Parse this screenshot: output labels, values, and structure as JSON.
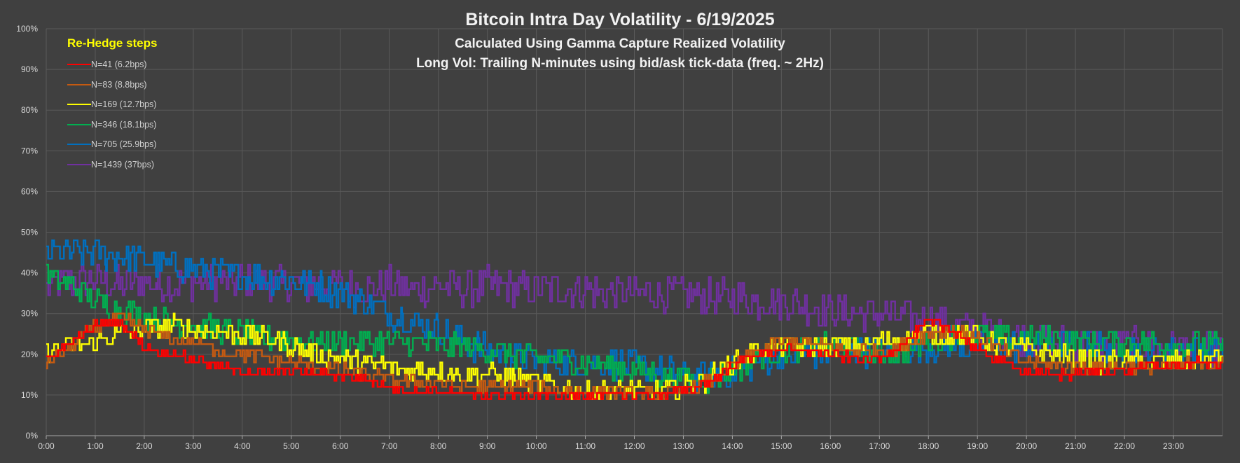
{
  "chart_data": {
    "type": "line",
    "title": "Bitcoin Intra Day Volatility - 6/19/2025",
    "subtitle_1": "Calculated Using Gamma Capture Realized Volatility",
    "subtitle_2": "Long Vol: Trailing N-minutes using bid/ask tick-data (freq. ~ 2Hz)",
    "legend_title": "Re-Hedge steps",
    "legend_position": "top-left",
    "grid": true,
    "ylim": [
      0,
      100
    ],
    "y_ticks": [
      "0%",
      "10%",
      "20%",
      "30%",
      "40%",
      "50%",
      "60%",
      "70%",
      "80%",
      "90%",
      "100%"
    ],
    "x_ticks": [
      "0:00",
      "1:00",
      "2:00",
      "3:00",
      "4:00",
      "5:00",
      "6:00",
      "7:00",
      "8:00",
      "9:00",
      "10:00",
      "11:00",
      "12:00",
      "13:00",
      "14:00",
      "15:00",
      "16:00",
      "17:00",
      "18:00",
      "19:00",
      "20:00",
      "21:00",
      "22:00",
      "23:00"
    ],
    "x_hours": [
      0,
      0.5,
      1,
      1.5,
      2,
      2.5,
      3,
      3.5,
      4,
      4.5,
      5,
      5.5,
      6,
      6.5,
      7,
      7.5,
      8,
      8.5,
      9,
      9.5,
      10,
      10.5,
      11,
      11.5,
      12,
      12.5,
      13,
      13.5,
      14,
      14.5,
      15,
      15.5,
      16,
      16.5,
      17,
      17.5,
      18,
      18.5,
      19,
      19.5,
      20,
      20.5,
      21,
      21.5,
      22,
      22.5,
      23,
      23.5,
      24
    ],
    "series": [
      {
        "name": "N=1439 (37bps)",
        "color": "#7030a0",
        "values": [
          36,
          38,
          38,
          37,
          38,
          37,
          38,
          38,
          38,
          38,
          37,
          37,
          37,
          36,
          37,
          36,
          37,
          36,
          37,
          36,
          36,
          36,
          36,
          35,
          35,
          35,
          35,
          34,
          34,
          33,
          33,
          32,
          31,
          30,
          30,
          29,
          28,
          27,
          26,
          25,
          24,
          23,
          23,
          22,
          22,
          22,
          22,
          21,
          21
        ]
      },
      {
        "name": "N=705 (25.9bps)",
        "color": "#0070c0",
        "values": [
          45,
          45,
          45,
          44,
          43,
          42,
          41,
          40,
          39,
          39,
          38,
          37,
          35,
          33,
          30,
          28,
          26,
          23,
          21,
          19,
          18,
          18,
          18,
          18,
          17,
          16,
          15,
          14,
          16,
          18,
          20,
          20,
          21,
          21,
          21,
          21,
          22,
          22,
          22,
          22,
          22,
          22,
          22,
          22,
          22,
          21,
          21,
          21,
          22
        ]
      },
      {
        "name": "N=346 (18.1bps)",
        "color": "#00b050",
        "values": [
          39,
          37,
          33,
          31,
          29,
          28,
          27,
          26,
          25,
          24,
          24,
          23,
          23,
          23,
          23,
          23,
          22,
          22,
          21,
          20,
          19,
          19,
          18,
          17,
          16,
          15,
          14,
          14,
          16,
          19,
          21,
          21,
          22,
          21,
          20,
          21,
          23,
          25,
          25,
          24,
          24,
          24,
          23,
          23,
          23,
          23,
          22,
          22,
          22
        ]
      },
      {
        "name": "N=169 (12.7bps)",
        "color": "#ffff00",
        "values": [
          21,
          22,
          23,
          25,
          26,
          27,
          26,
          26,
          25,
          24,
          22,
          20,
          19,
          18,
          17,
          16,
          16,
          15,
          15,
          14,
          13,
          12,
          11,
          11,
          11,
          11,
          12,
          14,
          18,
          21,
          22,
          22,
          22,
          22,
          23,
          24,
          25,
          25,
          24,
          22,
          21,
          20,
          19,
          18,
          18,
          18,
          18,
          18,
          19
        ]
      },
      {
        "name": "N=83 (8.8bps)",
        "color": "#c55a11",
        "values": [
          18,
          22,
          27,
          29,
          26,
          24,
          23,
          21,
          20,
          19,
          18,
          17,
          16,
          15,
          14,
          13,
          13,
          12,
          12,
          12,
          12,
          11,
          11,
          11,
          10,
          10,
          11,
          13,
          17,
          21,
          23,
          23,
          22,
          21,
          21,
          22,
          25,
          26,
          24,
          21,
          18,
          17,
          17,
          17,
          17,
          17,
          17,
          18,
          18
        ]
      },
      {
        "name": "N=41 (6.2bps)",
        "color": "#ff0000",
        "values": [
          19,
          23,
          27,
          28,
          22,
          20,
          19,
          17,
          16,
          15,
          16,
          15,
          15,
          14,
          12,
          11,
          11,
          10,
          10,
          10,
          10,
          10,
          10,
          10,
          10,
          10,
          11,
          13,
          17,
          20,
          21,
          21,
          20,
          19,
          19,
          23,
          28,
          26,
          21,
          18,
          16,
          15,
          15,
          16,
          16,
          17,
          17,
          18,
          17
        ]
      }
    ]
  }
}
